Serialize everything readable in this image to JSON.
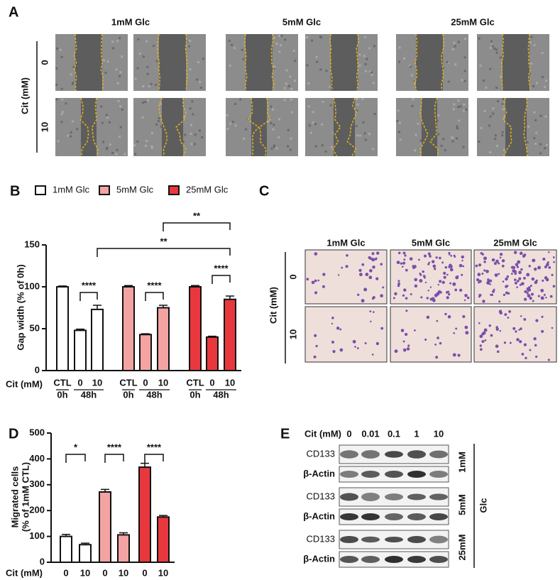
{
  "panels": {
    "A": {
      "letter": "A",
      "columns": [
        "1mM Glc",
        "5mM Glc",
        "25mM Glc"
      ],
      "row_axis": "Cit (mM)",
      "rows": [
        "0",
        "10"
      ]
    },
    "C": {
      "letter": "C",
      "columns": [
        "1mM Glc",
        "5mM Glc",
        "25mM Glc"
      ],
      "row_axis": "Cit (mM)",
      "rows": [
        "0",
        "10"
      ]
    },
    "E": {
      "letter": "E",
      "x_label": "Cit (mM)",
      "concentrations": [
        "0",
        "0.01",
        "0.1",
        "1",
        "10"
      ],
      "groups": [
        {
          "label": "1mM",
          "rows": [
            "CD133",
            "β-Actin"
          ]
        },
        {
          "label": "5mM",
          "rows": [
            "CD133",
            "β-Actin"
          ]
        },
        {
          "label": "25mM",
          "rows": [
            "CD133",
            "β-Actin"
          ]
        }
      ],
      "group_axis": "Glc"
    }
  },
  "chart_data": [
    {
      "type": "bar",
      "letter": "B",
      "legend": true,
      "ylabel": [
        "Gap width (% of 0h)"
      ],
      "xlabel": "Cit (mM)",
      "categories": [
        "CTL",
        "0",
        "10"
      ],
      "time_labels": [
        "0h",
        "48h"
      ],
      "series": [
        {
          "name": "1mM Glc",
          "color": "#ffffff",
          "values": [
            100,
            48,
            73
          ],
          "errors": [
            1,
            1.5,
            5
          ]
        },
        {
          "name": "5mM Glc",
          "color": "#f4a3a3",
          "values": [
            100,
            43,
            75
          ],
          "errors": [
            1.5,
            1,
            3
          ]
        },
        {
          "name": "25mM Glc",
          "color": "#e8383d",
          "values": [
            100,
            40,
            85
          ],
          "errors": [
            1.5,
            1,
            4
          ]
        }
      ],
      "ylim": [
        0,
        150
      ],
      "yticks": [
        0,
        50,
        100,
        150
      ],
      "significance": [
        {
          "label": "****",
          "from": [
            0,
            1
          ],
          "to": [
            0,
            2
          ]
        },
        {
          "label": "****",
          "from": [
            1,
            1
          ],
          "to": [
            1,
            2
          ]
        },
        {
          "label": "****",
          "from": [
            2,
            1
          ],
          "to": [
            2,
            2
          ]
        },
        {
          "label": "**",
          "from": [
            0,
            2
          ],
          "to": [
            2,
            2
          ]
        },
        {
          "label": "**",
          "from": [
            1,
            2
          ],
          "to": [
            2,
            2
          ]
        }
      ]
    },
    {
      "type": "bar",
      "letter": "D",
      "legend": false,
      "ylabel": [
        "Migrated cells",
        "(% of 1mM CTL)"
      ],
      "xlabel": "Cit (mM)",
      "categories": [
        "0",
        "10"
      ],
      "series": [
        {
          "name": "1mM Glc",
          "color": "#ffffff",
          "values": [
            100,
            68
          ],
          "errors": [
            8,
            6
          ]
        },
        {
          "name": "5mM Glc",
          "color": "#f4a3a3",
          "values": [
            272,
            106
          ],
          "errors": [
            10,
            8
          ]
        },
        {
          "name": "25mM Glc",
          "color": "#e8383d",
          "values": [
            368,
            175
          ],
          "errors": [
            15,
            6
          ]
        }
      ],
      "ylim": [
        0,
        500
      ],
      "yticks": [
        0,
        100,
        200,
        300,
        400,
        500
      ],
      "significance": [
        {
          "label": "*",
          "from": [
            0,
            0
          ],
          "to": [
            0,
            1
          ]
        },
        {
          "label": "****",
          "from": [
            1,
            0
          ],
          "to": [
            1,
            1
          ]
        },
        {
          "label": "****",
          "from": [
            2,
            0
          ],
          "to": [
            2,
            1
          ]
        }
      ]
    }
  ]
}
